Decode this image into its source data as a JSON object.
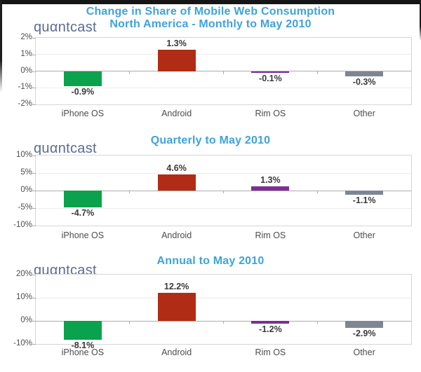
{
  "logo": {
    "text": "quαntcast"
  },
  "colors": {
    "title_blue": "#3FA2DC",
    "logo_slate": "#5C6B94",
    "iphone_green": "#0BA24D",
    "android_red": "#B12C14",
    "rim_purple": "#7D2E96",
    "other_gray": "#7E8693"
  },
  "chart_data": [
    {
      "type": "bar",
      "title": "Change in Share of Mobile Web Consumption",
      "subtitle": "North America - Monthly to May 2010",
      "categories": [
        "iPhone OS",
        "Android",
        "Rim OS",
        "Other"
      ],
      "values": [
        -0.9,
        1.3,
        -0.1,
        -0.3
      ],
      "value_labels": [
        "-0.9%",
        "1.3%",
        "-0.1%",
        "-0.3%"
      ],
      "bar_colors": [
        "#0BA24D",
        "#B12C14",
        "#7D2E96",
        "#7E8693"
      ],
      "ylim": [
        -2,
        2
      ],
      "yticks": [
        2,
        1,
        0,
        -1,
        -2
      ],
      "ytick_labels": [
        "2%",
        "1%",
        "0%",
        "-1%",
        "-2%"
      ],
      "grid": true,
      "legend": false
    },
    {
      "type": "bar",
      "title": "Quarterly to May 2010",
      "categories": [
        "iPhone OS",
        "Android",
        "Rim OS",
        "Other"
      ],
      "values": [
        -4.7,
        4.6,
        1.3,
        -1.1
      ],
      "value_labels": [
        "-4.7%",
        "4.6%",
        "1.3%",
        "-1.1%"
      ],
      "bar_colors": [
        "#0BA24D",
        "#B12C14",
        "#7D2E96",
        "#7E8693"
      ],
      "ylim": [
        -10,
        10
      ],
      "yticks": [
        10,
        5,
        0,
        -5,
        -10
      ],
      "ytick_labels": [
        "10%",
        "5%",
        "0%",
        "-5%",
        "-10%"
      ],
      "grid": true,
      "legend": false
    },
    {
      "type": "bar",
      "title": "Annual to May 2010",
      "categories": [
        "iPhone OS",
        "Android",
        "Rim OS",
        "Other"
      ],
      "values": [
        -8.1,
        12.2,
        -1.2,
        -2.9
      ],
      "value_labels": [
        "-8.1%",
        "12.2%",
        "-1.2%",
        "-2.9%"
      ],
      "bar_colors": [
        "#0BA24D",
        "#B12C14",
        "#7D2E96",
        "#7E8693"
      ],
      "ylim": [
        -10,
        20
      ],
      "yticks": [
        20,
        10,
        0,
        -10
      ],
      "ytick_labels": [
        "20%",
        "10%",
        "0%",
        "-10%"
      ],
      "grid": true,
      "legend": false
    }
  ]
}
